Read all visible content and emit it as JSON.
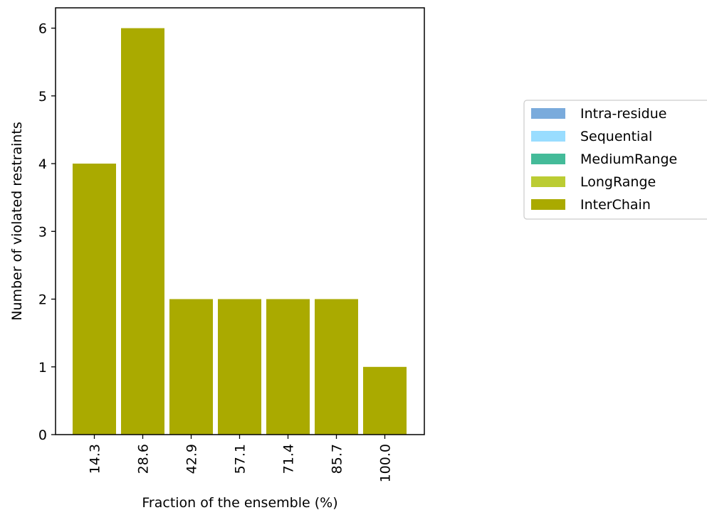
{
  "chart_data": {
    "type": "bar",
    "stacked": true,
    "categories": [
      "14.3",
      "28.6",
      "42.9",
      "57.1",
      "71.4",
      "85.7",
      "100.0"
    ],
    "series": [
      {
        "name": "Intra-residue",
        "color": "#7aabdc",
        "values": [
          0,
          0,
          0,
          0,
          0,
          0,
          0
        ]
      },
      {
        "name": "Sequential",
        "color": "#99ddff",
        "values": [
          0,
          0,
          0,
          0,
          0,
          0,
          0
        ]
      },
      {
        "name": "MediumRange",
        "color": "#44bb99",
        "values": [
          0,
          0,
          0,
          0,
          0,
          0,
          0
        ]
      },
      {
        "name": "LongRange",
        "color": "#bbcc33",
        "values": [
          0,
          0,
          0,
          0,
          0,
          0,
          0
        ]
      },
      {
        "name": "InterChain",
        "color": "#aaaa00",
        "values": [
          4,
          6,
          2,
          2,
          2,
          2,
          1
        ]
      }
    ],
    "xlabel": "Fraction of the ensemble (%)",
    "ylabel": "Number of violated restraints",
    "ylim": [
      0,
      6.3
    ],
    "yticks": [
      0,
      1,
      2,
      3,
      4,
      5,
      6
    ],
    "legend_position": "right",
    "grid": false
  }
}
